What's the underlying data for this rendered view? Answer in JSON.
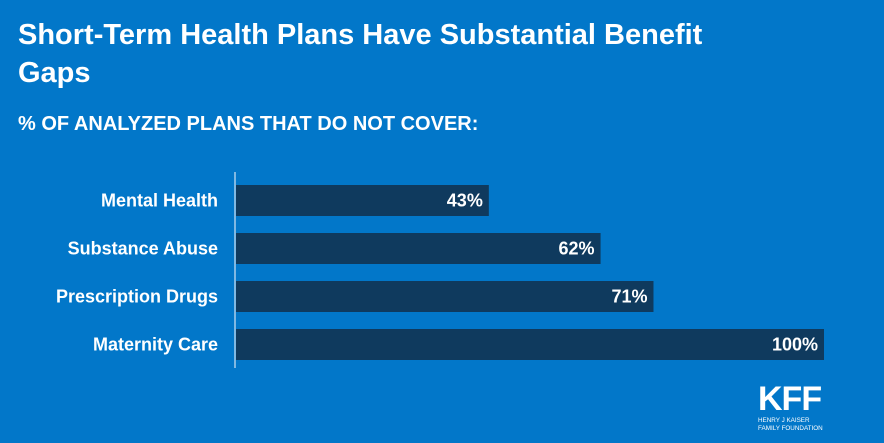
{
  "colors": {
    "background": "#0277c9",
    "bar": "#0f3a5e",
    "text": "#ffffff",
    "axis": "#a9cdea"
  },
  "chart_data": {
    "type": "bar",
    "orientation": "horizontal",
    "title": "Short-Term Health Plans Have Substantial Benefit Gaps",
    "subtitle": "% OF ANALYZED PLANS THAT DO NOT COVER:",
    "categories": [
      "Mental Health",
      "Substance Abuse",
      "Prescription Drugs",
      "Maternity Care"
    ],
    "values": [
      43,
      62,
      71,
      100
    ],
    "data_labels": [
      "43%",
      "62%",
      "71%",
      "100%"
    ],
    "xlim": [
      0,
      100
    ],
    "grid": false
  },
  "logo": {
    "mark": "KFF",
    "line1": "HENRY J KAISER",
    "line2": "FAMILY FOUNDATION"
  }
}
